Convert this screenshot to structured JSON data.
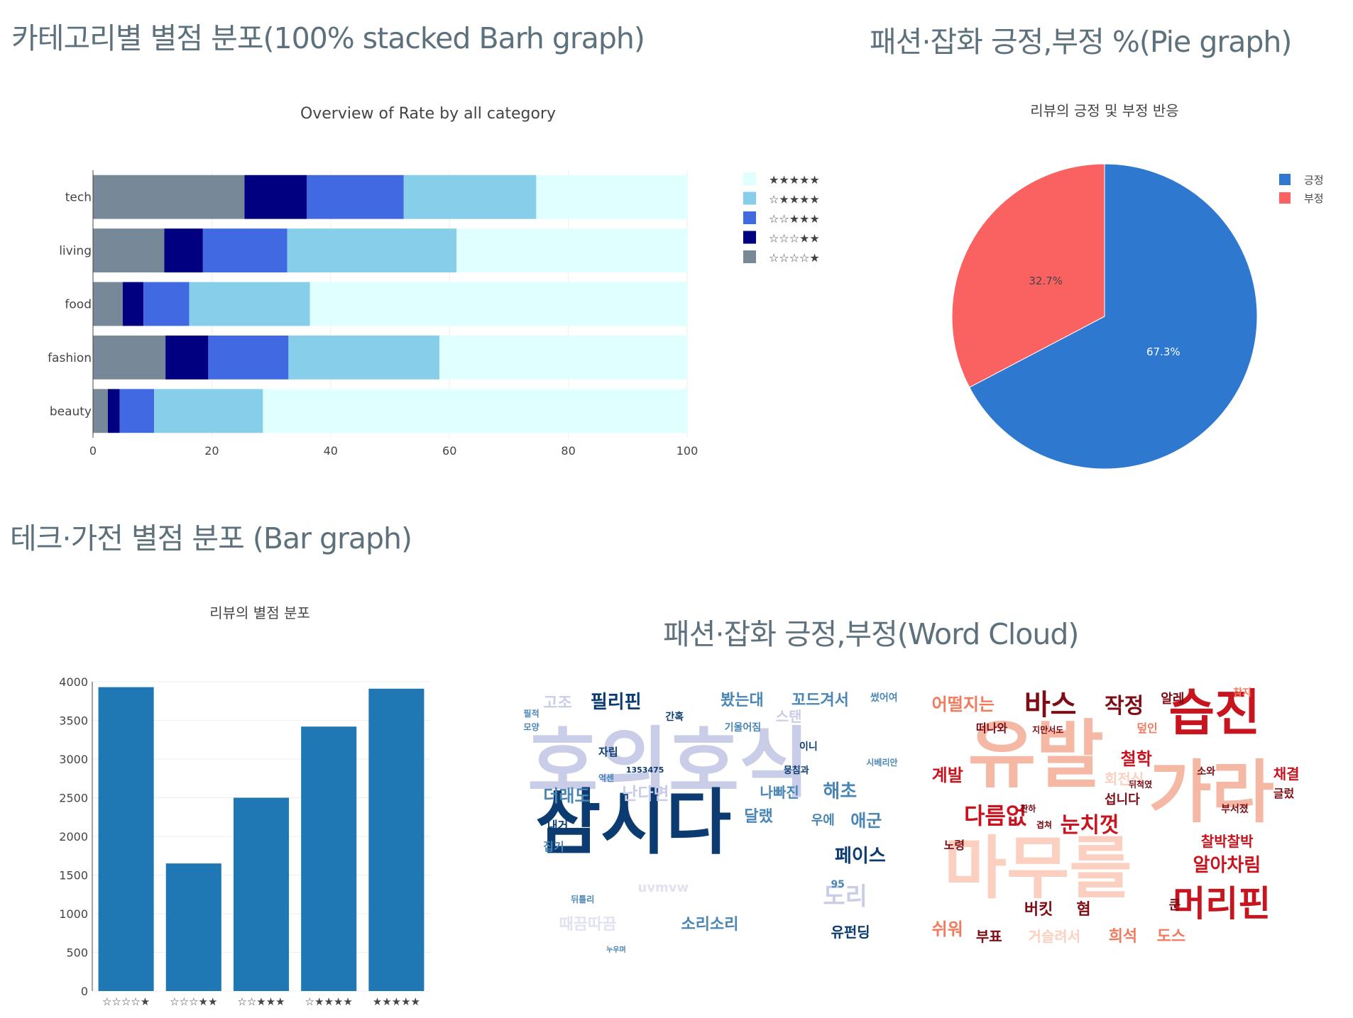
{
  "titles": {
    "stacked": "카테고리별 별점 분포(100% stacked Barh graph)",
    "pie": "패션·잡화 긍정,부정 %(Pie graph)",
    "bar": "테크·가전 별점 분포 (Bar graph)",
    "wordcloud": "패션·잡화 긍정,부정(Word Cloud)"
  },
  "chart_data": [
    {
      "type": "bar",
      "orientation": "horizontal",
      "stacked": "100%",
      "title": "Overview of Rate by all category",
      "categories": [
        "tech",
        "living",
        "food",
        "fashion",
        "beauty"
      ],
      "series": [
        {
          "name": "☆☆☆☆★",
          "color": "#778899",
          "values": [
            25.5,
            12,
            5,
            12.2,
            2.5
          ]
        },
        {
          "name": "☆☆☆★★",
          "color": "#000080",
          "values": [
            10.5,
            6.5,
            3.5,
            7.2,
            2
          ]
        },
        {
          "name": "☆☆★★★",
          "color": "#4169e1",
          "values": [
            16.3,
            14.2,
            7.7,
            13.5,
            5.8
          ]
        },
        {
          "name": "☆★★★★",
          "color": "#87ceeb",
          "values": [
            22.3,
            28.5,
            20.3,
            25.4,
            18.3
          ]
        },
        {
          "name": "★★★★★",
          "color": "#e0ffff",
          "values": [
            25.4,
            38.8,
            63.5,
            41.7,
            71.4
          ]
        }
      ],
      "xlim": [
        0,
        100
      ],
      "xticks": [
        0,
        20,
        40,
        60,
        80,
        100
      ],
      "grid": true,
      "legend_position": "right"
    },
    {
      "type": "pie",
      "title": "리뷰의 긍정 및 부정 반응",
      "slices": [
        {
          "label": "긍정",
          "value": 67.3,
          "text": "67.3%",
          "color": "#2e78d0"
        },
        {
          "label": "부정",
          "value": 32.7,
          "text": "32.7%",
          "color": "#fa6262"
        }
      ],
      "legend_position": "top-right"
    },
    {
      "type": "bar",
      "title": "리뷰의 별점 분포",
      "categories": [
        "☆☆☆☆★",
        "☆☆☆★★",
        "☆☆★★★",
        "☆★★★★",
        "★★★★★"
      ],
      "values": [
        3930,
        1650,
        2500,
        3420,
        3910
      ],
      "color": "#1f77b4",
      "ylim": [
        0,
        4000
      ],
      "yticks": [
        0,
        500,
        1000,
        1500,
        2000,
        2500,
        3000,
        3500,
        4000
      ],
      "grid": true
    }
  ],
  "wordcloud": {
    "positive": {
      "background": "#ffffff",
      "words": [
        {
          "text": "호의호식",
          "x": 2,
          "y": 15,
          "size": 108,
          "color": "#c9cde8",
          "rotate": 0
        },
        {
          "text": "삼시다",
          "x": 4,
          "y": 38,
          "size": 100,
          "color": "#0b3b70",
          "rotate": 0
        },
        {
          "text": "필리핀",
          "x": 18,
          "y": 3,
          "size": 26,
          "color": "#0b3b70",
          "rotate": 0
        },
        {
          "text": "고조",
          "x": 6,
          "y": 4,
          "size": 22,
          "color": "#c9cde8",
          "rotate": 0
        },
        {
          "text": "봤는대",
          "x": 51,
          "y": 3,
          "size": 22,
          "color": "#4a86b5",
          "rotate": 0
        },
        {
          "text": "꼬드겨서",
          "x": 69,
          "y": 3,
          "size": 22,
          "color": "#4a86b5",
          "rotate": 0
        },
        {
          "text": "썼어여",
          "x": 89,
          "y": 3,
          "size": 14,
          "color": "#4a86b5",
          "rotate": 0
        },
        {
          "text": "스탠",
          "x": 65,
          "y": 9,
          "size": 20,
          "color": "#c9cde8",
          "rotate": 0
        },
        {
          "text": "자립",
          "x": 20,
          "y": 23,
          "size": 15,
          "color": "#0b3b70",
          "rotate": 0
        },
        {
          "text": "1353475",
          "x": 27,
          "y": 30,
          "size": 11,
          "color": "#0b3b70",
          "rotate": 0
        },
        {
          "text": "더래도",
          "x": 6,
          "y": 38,
          "size": 24,
          "color": "#4a86b5",
          "rotate": 0
        },
        {
          "text": "난다면",
          "x": 26,
          "y": 37,
          "size": 24,
          "color": "#c9cde8",
          "rotate": 0
        },
        {
          "text": "나빠진",
          "x": 61,
          "y": 37,
          "size": 20,
          "color": "#4a86b5",
          "rotate": 0
        },
        {
          "text": "해초",
          "x": 77,
          "y": 36,
          "size": 26,
          "color": "#4a86b5",
          "rotate": 0
        },
        {
          "text": "달랬",
          "x": 57,
          "y": 46,
          "size": 22,
          "color": "#4a86b5",
          "rotate": 0
        },
        {
          "text": "우에",
          "x": 74,
          "y": 48,
          "size": 18,
          "color": "#4a86b5",
          "rotate": 0
        },
        {
          "text": "애군",
          "x": 84,
          "y": 47,
          "size": 24,
          "color": "#4a86b5",
          "rotate": 0
        },
        {
          "text": "페이스",
          "x": 80,
          "y": 60,
          "size": 26,
          "color": "#0b3b70",
          "rotate": 0
        },
        {
          "text": "도리",
          "x": 77,
          "y": 74,
          "size": 34,
          "color": "#c9cde8",
          "rotate": 0
        },
        {
          "text": "소리소리",
          "x": 41,
          "y": 86,
          "size": 22,
          "color": "#4a86b5",
          "rotate": 0
        },
        {
          "text": "때끔따끔",
          "x": 10,
          "y": 86,
          "size": 22,
          "color": "#e1e2f0",
          "rotate": 0
        },
        {
          "text": "uvmvw",
          "x": 30,
          "y": 73,
          "size": 18,
          "color": "#e1e2f0",
          "rotate": 0
        },
        {
          "text": "유펀딩",
          "x": 79,
          "y": 89,
          "size": 20,
          "color": "#0b3b70",
          "rotate": 0
        },
        {
          "text": "뭉침과",
          "x": 67,
          "y": 30,
          "size": 13,
          "color": "#0b3b70",
          "rotate": 0
        },
        {
          "text": "이니",
          "x": 71,
          "y": 21,
          "size": 14,
          "color": "#0b3b70",
          "rotate": 0
        },
        {
          "text": "내거",
          "x": 7,
          "y": 50,
          "size": 16,
          "color": "#0b3b70",
          "rotate": 0
        },
        {
          "text": "집기",
          "x": 6,
          "y": 58,
          "size": 16,
          "color": "#4a86b5",
          "rotate": 0
        },
        {
          "text": "간혹",
          "x": 37,
          "y": 10,
          "size": 14,
          "color": "#0b3b70",
          "rotate": 0
        },
        {
          "text": "기울어짐",
          "x": 52,
          "y": 14,
          "size": 14,
          "color": "#4a86b5",
          "rotate": 0
        },
        {
          "text": "모양",
          "x": 1,
          "y": 14,
          "size": 12,
          "color": "#4a86b5",
          "rotate": 0
        },
        {
          "text": "필적",
          "x": 1,
          "y": 9,
          "size": 12,
          "color": "#4a86b5",
          "rotate": 0
        },
        {
          "text": "억센",
          "x": 20,
          "y": 33,
          "size": 12,
          "color": "#4a86b5",
          "rotate": 0
        },
        {
          "text": "누우며",
          "x": 22,
          "y": 97,
          "size": 10,
          "color": "#4a86b5",
          "rotate": 0
        },
        {
          "text": "95",
          "x": 79,
          "y": 72,
          "size": 14,
          "color": "#4a86b5",
          "rotate": 0
        },
        {
          "text": "뒤틀리",
          "x": 13,
          "y": 78,
          "size": 12,
          "color": "#4a86b5",
          "rotate": 0
        },
        {
          "text": "시베리안",
          "x": 88,
          "y": 27,
          "size": 12,
          "color": "#4a86b5",
          "rotate": 0
        }
      ]
    },
    "negative": {
      "background": "#ffffff",
      "words": [
        {
          "text": "유발",
          "x": 10,
          "y": 12,
          "size": 104,
          "color": "#f5b8a5",
          "rotate": 0
        },
        {
          "text": "가라",
          "x": 55,
          "y": 27,
          "size": 96,
          "color": "#f5b8a5",
          "rotate": 0
        },
        {
          "text": "마무를",
          "x": 4,
          "y": 55,
          "size": 96,
          "color": "#fcd0c0",
          "rotate": 0
        },
        {
          "text": "습진",
          "x": 60,
          "y": 1,
          "size": 70,
          "color": "#c8141e",
          "rotate": 0
        },
        {
          "text": "바스",
          "x": 24,
          "y": 2,
          "size": 40,
          "color": "#7d0c14",
          "rotate": 0
        },
        {
          "text": "작정",
          "x": 44,
          "y": 4,
          "size": 30,
          "color": "#7d0c14",
          "rotate": 0
        },
        {
          "text": "어떨지는",
          "x": 1,
          "y": 4,
          "size": 24,
          "color": "#f27a5f",
          "rotate": 0
        },
        {
          "text": "떠나와",
          "x": 12,
          "y": 14,
          "size": 16,
          "color": "#7d0c14",
          "rotate": 0
        },
        {
          "text": "계발",
          "x": 1,
          "y": 30,
          "size": 24,
          "color": "#c8141e",
          "rotate": 0
        },
        {
          "text": "철학",
          "x": 48,
          "y": 24,
          "size": 24,
          "color": "#c8141e",
          "rotate": 0
        },
        {
          "text": "다름없",
          "x": 9,
          "y": 44,
          "size": 32,
          "color": "#c8141e",
          "rotate": 0
        },
        {
          "text": "눈치껏",
          "x": 33,
          "y": 48,
          "size": 30,
          "color": "#c8141e",
          "rotate": 0
        },
        {
          "text": "머리핀",
          "x": 61,
          "y": 74,
          "size": 50,
          "color": "#c8141e",
          "rotate": 0
        },
        {
          "text": "알아차림",
          "x": 66,
          "y": 63,
          "size": 26,
          "color": "#c8141e",
          "rotate": 0
        },
        {
          "text": "찰박찰박",
          "x": 68,
          "y": 55,
          "size": 20,
          "color": "#c8141e",
          "rotate": 0
        },
        {
          "text": "채결",
          "x": 86,
          "y": 30,
          "size": 20,
          "color": "#c8141e",
          "rotate": 0
        },
        {
          "text": "쉬워",
          "x": 1,
          "y": 87,
          "size": 24,
          "color": "#f27a5f",
          "rotate": 0
        },
        {
          "text": "부표",
          "x": 12,
          "y": 90,
          "size": 20,
          "color": "#7d0c14",
          "rotate": 0
        },
        {
          "text": "버킷",
          "x": 24,
          "y": 80,
          "size": 22,
          "color": "#7d0c14",
          "rotate": 0
        },
        {
          "text": "혐",
          "x": 37,
          "y": 80,
          "size": 22,
          "color": "#7d0c14",
          "rotate": 0
        },
        {
          "text": "거슬려서",
          "x": 25,
          "y": 90,
          "size": 20,
          "color": "#fcd0c0",
          "rotate": 0
        },
        {
          "text": "희석",
          "x": 45,
          "y": 90,
          "size": 22,
          "color": "#f27a5f",
          "rotate": 0
        },
        {
          "text": "도스",
          "x": 57,
          "y": 90,
          "size": 22,
          "color": "#f27a5f",
          "rotate": 0
        },
        {
          "text": "노령",
          "x": 4,
          "y": 57,
          "size": 16,
          "color": "#7d0c14",
          "rotate": 0
        },
        {
          "text": "섭니다",
          "x": 44,
          "y": 40,
          "size": 18,
          "color": "#7d0c14",
          "rotate": 0
        },
        {
          "text": "회전식",
          "x": 44,
          "y": 32,
          "size": 20,
          "color": "#fcd0c0",
          "rotate": 0
        },
        {
          "text": "알레",
          "x": 58,
          "y": 3,
          "size": 18,
          "color": "#7d0c14",
          "rotate": 0
        },
        {
          "text": "글렀",
          "x": 86,
          "y": 38,
          "size": 16,
          "color": "#7d0c14",
          "rotate": 0
        },
        {
          "text": "부서졌",
          "x": 73,
          "y": 44,
          "size": 14,
          "color": "#7d0c14",
          "rotate": 0
        },
        {
          "text": "소와",
          "x": 67,
          "y": 30,
          "size": 14,
          "color": "#7d0c14",
          "rotate": 0
        },
        {
          "text": "덮인",
          "x": 52,
          "y": 14,
          "size": 16,
          "color": "#f27a5f",
          "rotate": 0
        },
        {
          "text": "뒤척였",
          "x": 50,
          "y": 35,
          "size": 12,
          "color": "#7d0c14",
          "rotate": 0
        },
        {
          "text": "쿤",
          "x": 60,
          "y": 79,
          "size": 18,
          "color": "#7d0c14",
          "rotate": 0
        },
        {
          "text": "참지",
          "x": 76,
          "y": 1,
          "size": 14,
          "color": "#f27a5f",
          "rotate": 0
        },
        {
          "text": "짠하",
          "x": 23,
          "y": 44,
          "size": 12,
          "color": "#7d0c14",
          "rotate": 0
        },
        {
          "text": "겹쳐",
          "x": 27,
          "y": 50,
          "size": 12,
          "color": "#7d0c14",
          "rotate": 0
        },
        {
          "text": "지만서도",
          "x": 26,
          "y": 15,
          "size": 12,
          "color": "#7d0c14",
          "rotate": 0
        }
      ]
    }
  }
}
